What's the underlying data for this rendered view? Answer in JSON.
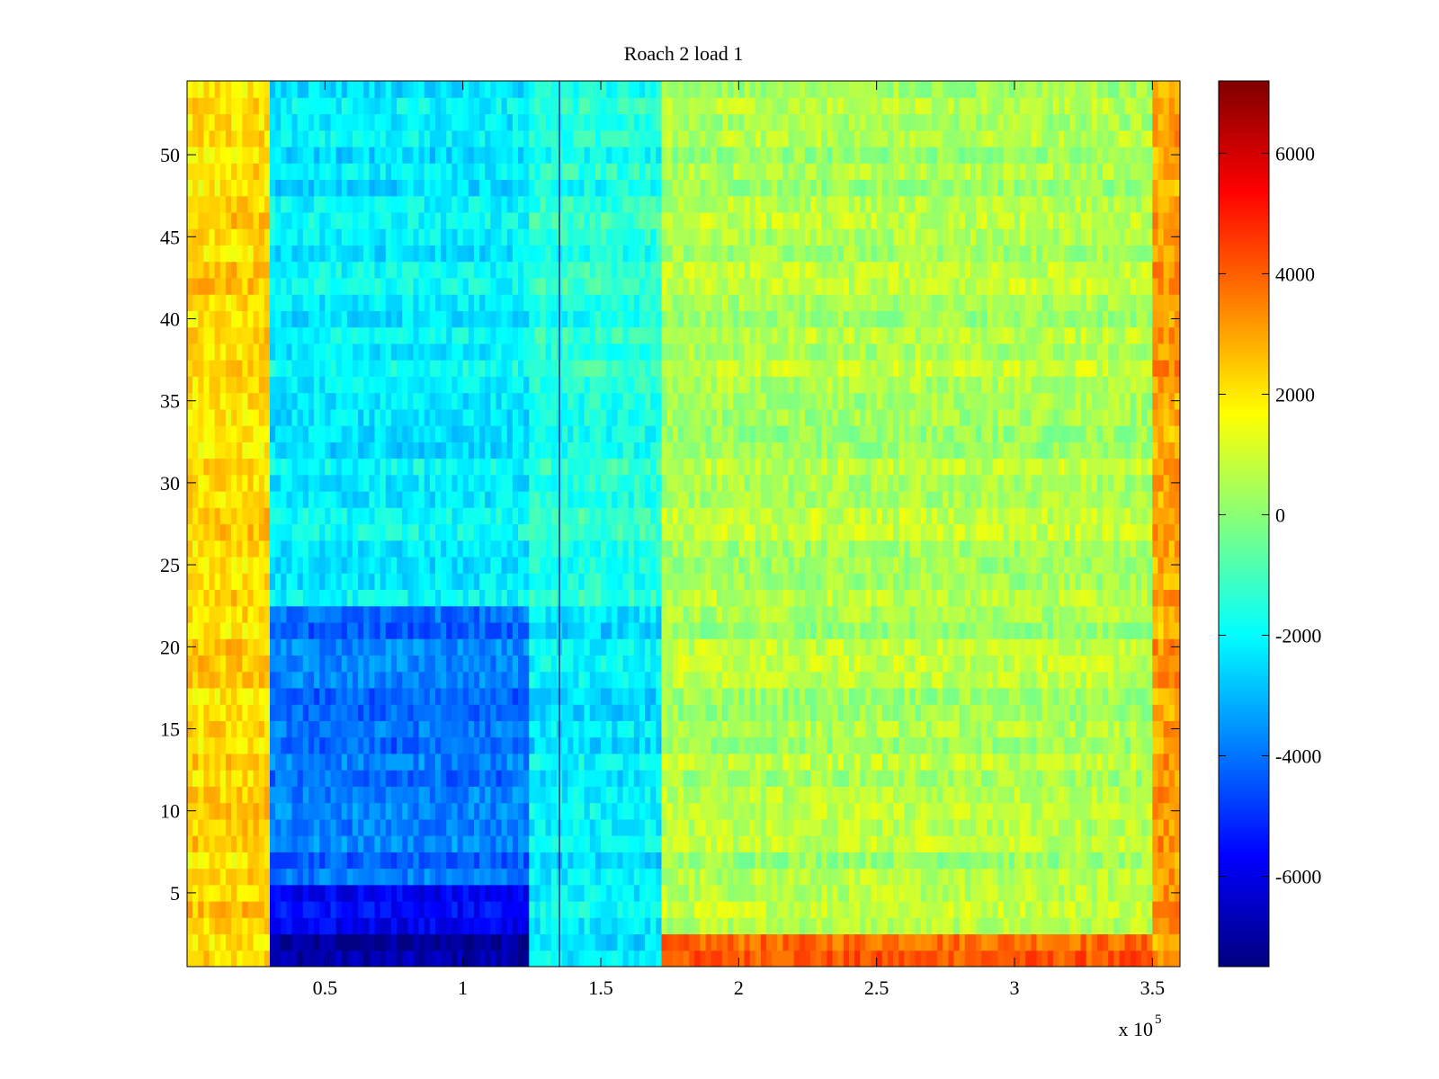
{
  "chart_data": {
    "type": "heatmap",
    "title": "Roach 2 load 1",
    "xlabel": "",
    "ylabel": "",
    "x_multiplier_label": "x 10",
    "x_multiplier_exponent": "5",
    "xlim": [
      0,
      3.6
    ],
    "ylim": [
      0.5,
      54.5
    ],
    "x_ticks": [
      0.5,
      1,
      1.5,
      2,
      2.5,
      3,
      3.5
    ],
    "x_tick_labels": [
      "0.5",
      "1",
      "1.5",
      "2",
      "2.5",
      "3",
      "3.5"
    ],
    "y_ticks": [
      5,
      10,
      15,
      20,
      25,
      30,
      35,
      40,
      45,
      50
    ],
    "y_tick_labels": [
      "5",
      "10",
      "15",
      "20",
      "25",
      "30",
      "35",
      "40",
      "45",
      "50"
    ],
    "colorbar": {
      "colormap": "jet",
      "clim": [
        -7500,
        7200
      ],
      "ticks": [
        -6000,
        -4000,
        -2000,
        0,
        2000,
        4000,
        6000
      ],
      "tick_labels": [
        "-6000",
        "-4000",
        "-2000",
        "0",
        "2000",
        "4000",
        "6000"
      ]
    },
    "rows": 54,
    "regions": [
      {
        "x": [
          0.0,
          0.31
        ],
        "rows": [
          1,
          54
        ],
        "value": 2200
      },
      {
        "x": [
          0.31,
          1.25
        ],
        "rows": [
          1,
          2
        ],
        "value": -7000
      },
      {
        "x": [
          0.31,
          1.25
        ],
        "rows": [
          3,
          5
        ],
        "value": -6000
      },
      {
        "x": [
          0.31,
          1.25
        ],
        "rows": [
          6,
          22
        ],
        "value": -4000
      },
      {
        "x": [
          0.31,
          1.25
        ],
        "rows": [
          23,
          54
        ],
        "value": -2200
      },
      {
        "x": [
          1.25,
          1.72
        ],
        "rows": [
          1,
          22
        ],
        "value": -2300
      },
      {
        "x": [
          1.25,
          1.72
        ],
        "rows": [
          23,
          54
        ],
        "value": -1500
      },
      {
        "x": [
          1.72,
          3.5
        ],
        "rows": [
          1,
          2
        ],
        "value": 4000
      },
      {
        "x": [
          1.72,
          3.5
        ],
        "rows": [
          3,
          54
        ],
        "value": 500
      },
      {
        "x": [
          3.5,
          3.6
        ],
        "rows": [
          1,
          54
        ],
        "value": 3000
      }
    ],
    "vertical_line_x": 1.35
  }
}
